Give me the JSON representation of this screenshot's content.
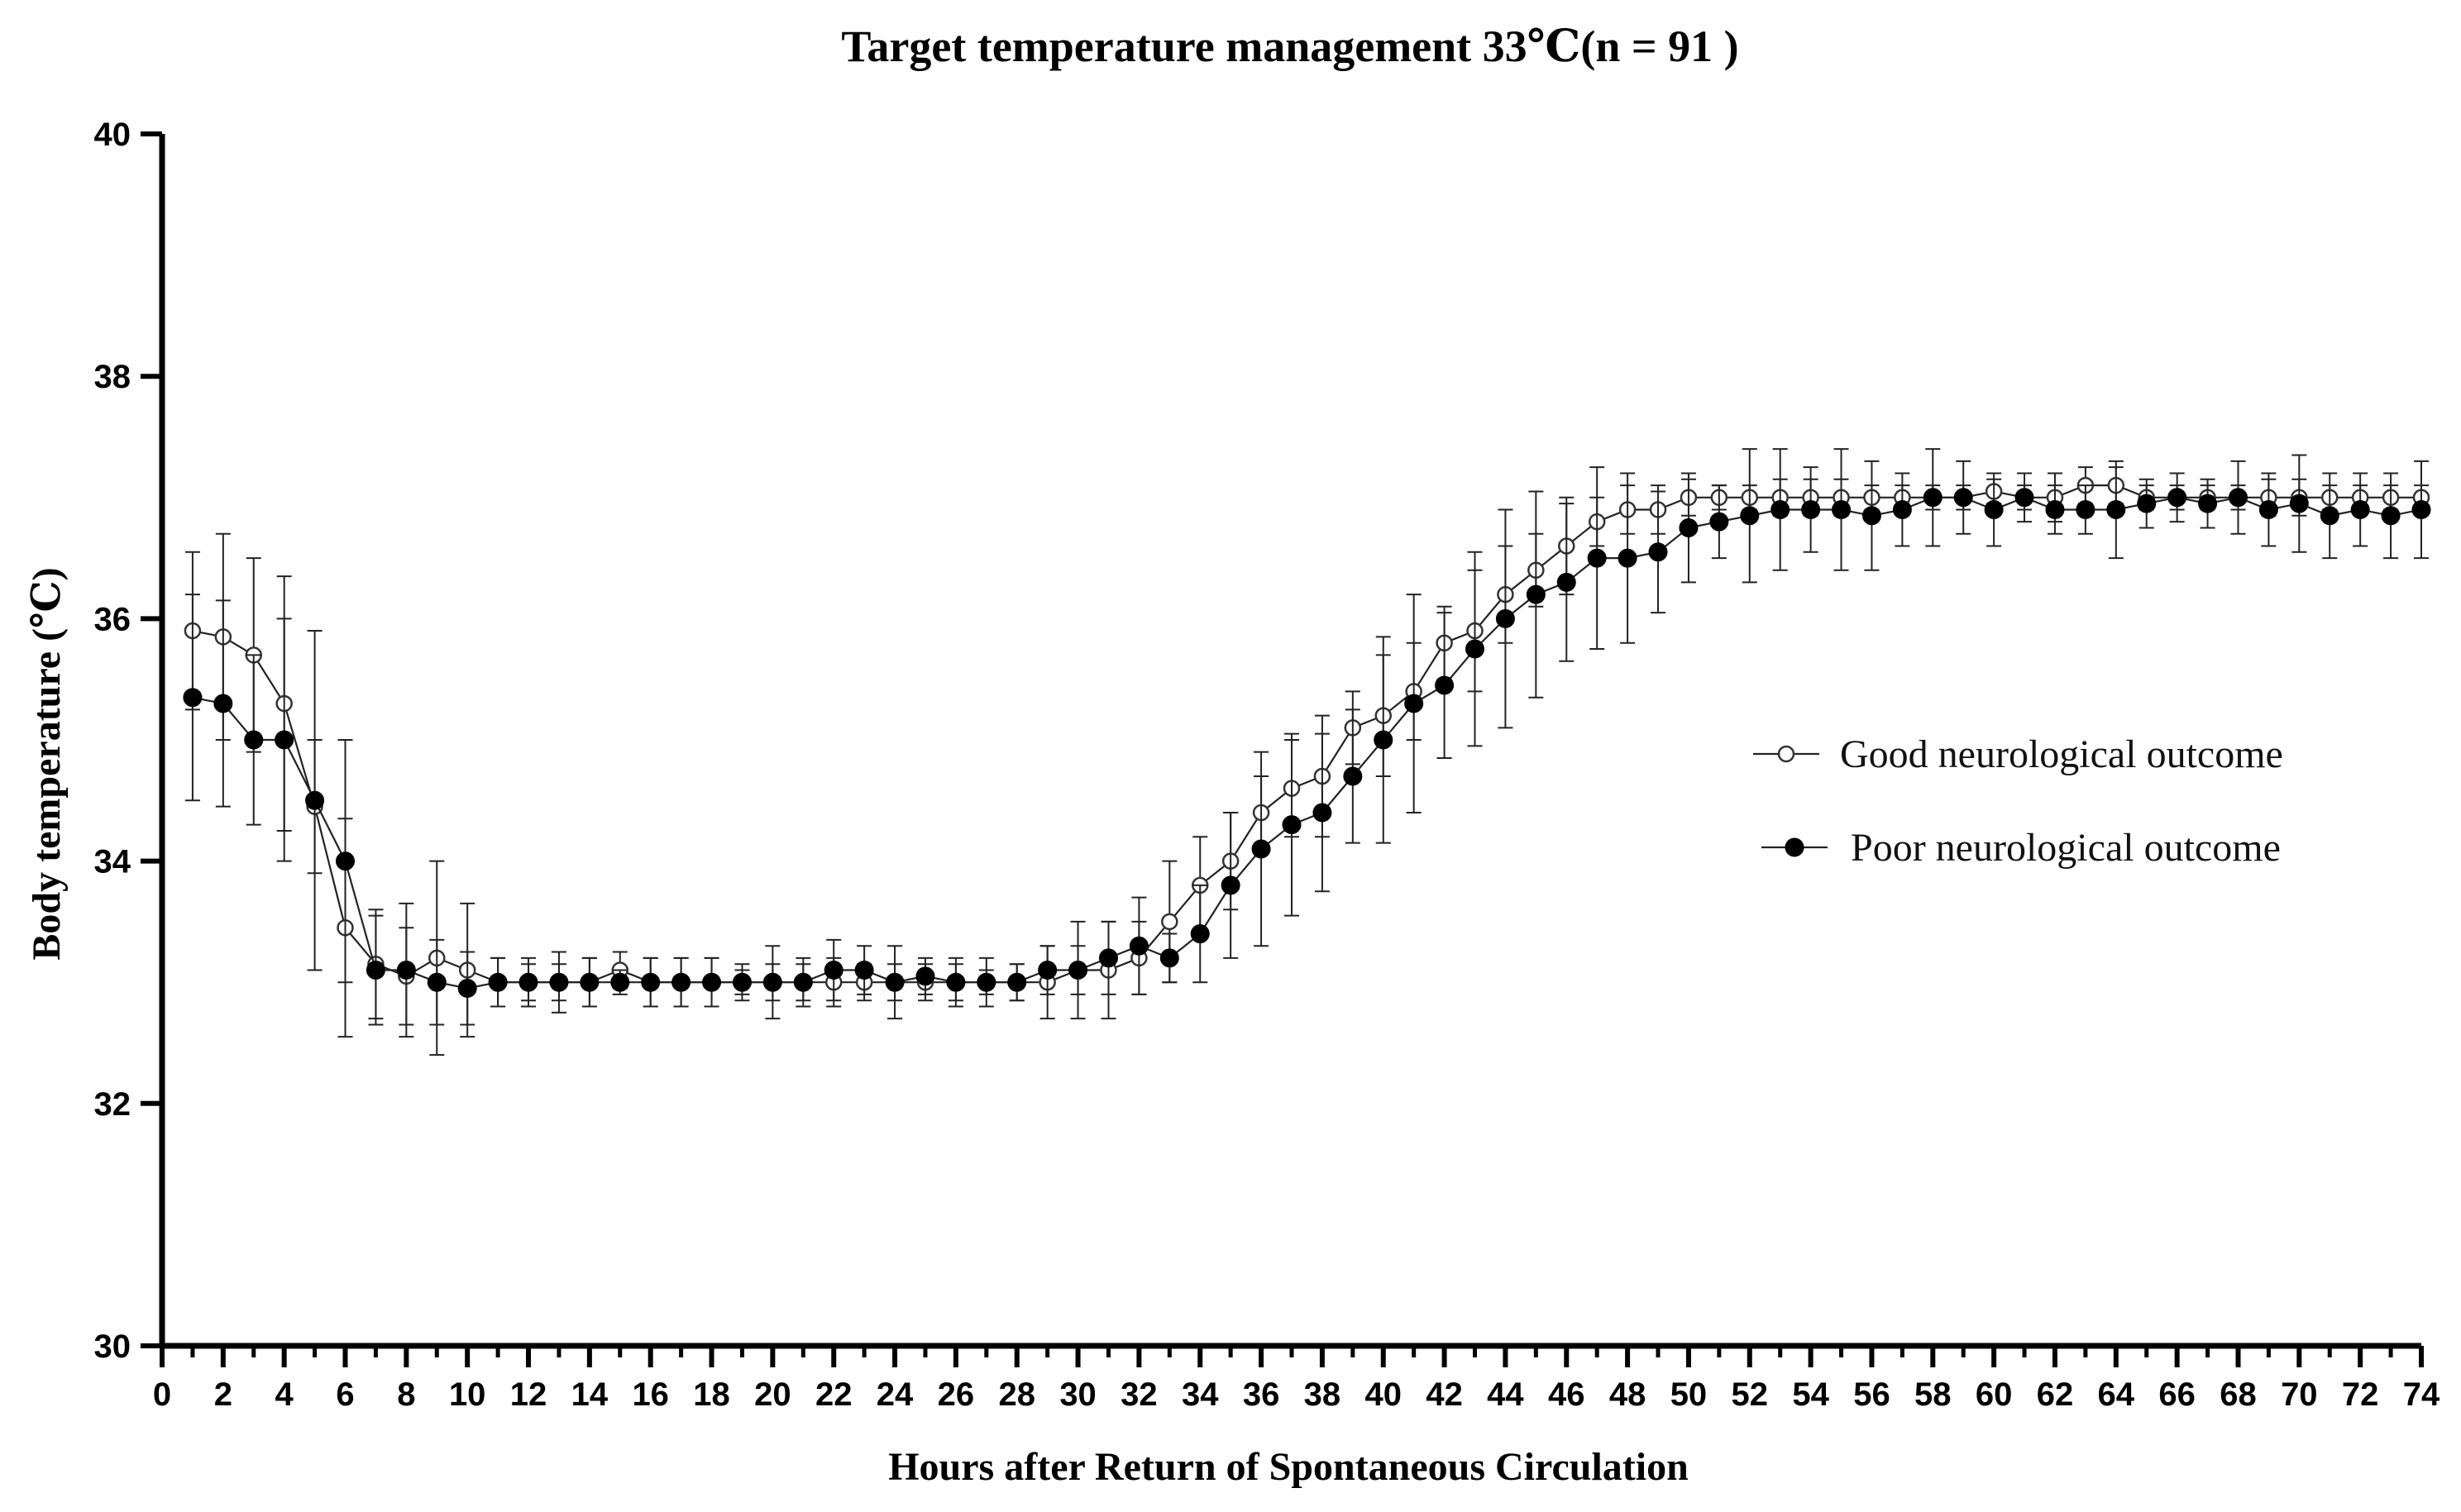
{
  "chart_data": {
    "type": "line",
    "title": "Target temperature management 33℃(n = 91 )",
    "xlabel": "Hours after Return of Spontaneous Circulation",
    "ylabel": "Body temperature (℃)",
    "xlim": [
      0,
      74
    ],
    "ylim": [
      30,
      40
    ],
    "x_ticks": [
      0,
      2,
      4,
      6,
      8,
      10,
      12,
      14,
      16,
      18,
      20,
      22,
      24,
      26,
      28,
      30,
      32,
      34,
      36,
      38,
      40,
      42,
      44,
      46,
      48,
      50,
      52,
      54,
      56,
      58,
      60,
      62,
      64,
      66,
      68,
      70,
      72,
      74
    ],
    "y_ticks": [
      30,
      32,
      34,
      36,
      38,
      40
    ],
    "grid": false,
    "legend_position": "right",
    "x": [
      1,
      2,
      3,
      4,
      5,
      6,
      7,
      8,
      9,
      10,
      11,
      12,
      13,
      14,
      15,
      16,
      17,
      18,
      19,
      20,
      21,
      22,
      23,
      24,
      25,
      26,
      27,
      28,
      29,
      30,
      31,
      32,
      33,
      34,
      35,
      36,
      37,
      38,
      39,
      40,
      41,
      42,
      43,
      44,
      45,
      46,
      47,
      48,
      49,
      50,
      51,
      52,
      53,
      54,
      55,
      56,
      57,
      58,
      59,
      60,
      61,
      62,
      63,
      64,
      65,
      66,
      67,
      68,
      69,
      70,
      71,
      72,
      73,
      74
    ],
    "series": [
      {
        "name": "Good neurological outcome",
        "marker": "open-circle",
        "color": "#333333",
        "values": [
          35.9,
          35.85,
          35.7,
          35.3,
          34.45,
          33.45,
          33.15,
          33.05,
          33.2,
          33.1,
          33.0,
          33.0,
          33.0,
          33.0,
          33.1,
          33.0,
          33.0,
          33.0,
          33.0,
          33.0,
          33.0,
          33.0,
          33.0,
          33.0,
          33.0,
          33.0,
          33.0,
          33.0,
          33.0,
          33.1,
          33.1,
          33.2,
          33.5,
          33.8,
          34.0,
          34.4,
          34.6,
          34.7,
          35.1,
          35.2,
          35.4,
          35.8,
          35.9,
          36.2,
          36.4,
          36.6,
          36.8,
          36.9,
          36.9,
          37.0,
          37.0,
          37.0,
          37.0,
          37.0,
          37.0,
          37.0,
          37.0,
          37.0,
          37.0,
          37.05,
          37.0,
          37.0,
          37.1,
          37.1,
          37.0,
          37.0,
          37.0,
          37.0,
          37.0,
          37.0,
          37.0,
          37.0,
          37.0,
          37.0
        ],
        "error": [
          0.65,
          0.85,
          0.8,
          1.05,
          0.55,
          0.9,
          0.45,
          0.4,
          0.8,
          0.55,
          0.2,
          0.15,
          0.15,
          0.2,
          0.15,
          0.2,
          0.2,
          0.2,
          0.1,
          0.3,
          0.15,
          0.2,
          0.15,
          0.3,
          0.15,
          0.15,
          0.2,
          0.15,
          0.3,
          0.4,
          0.4,
          0.3,
          0.5,
          0.4,
          0.4,
          0.3,
          0.4,
          0.5,
          0.3,
          0.5,
          0.4,
          0.3,
          0.5,
          0.4,
          0.3,
          0.4,
          0.2,
          0.2,
          0.2,
          0.15,
          0.1,
          0.1,
          0.15,
          0.15,
          0.15,
          0.1,
          0.1,
          0.1,
          0.1,
          0.1,
          0.1,
          0.2,
          0.15,
          0.15,
          0.1,
          0.1,
          0.1,
          0.1,
          0.15,
          0.15,
          0.1,
          0.1,
          0.1,
          0.1
        ]
      },
      {
        "name": "Poor neurological outcome",
        "marker": "filled-circle",
        "color": "#000000",
        "values": [
          35.35,
          35.3,
          35.0,
          35.0,
          34.5,
          34.0,
          33.1,
          33.1,
          33.0,
          32.95,
          33.0,
          33.0,
          33.0,
          33.0,
          33.0,
          33.0,
          33.0,
          33.0,
          33.0,
          33.0,
          33.0,
          33.1,
          33.1,
          33.0,
          33.05,
          33.0,
          33.0,
          33.0,
          33.1,
          33.1,
          33.2,
          33.3,
          33.2,
          33.4,
          33.8,
          34.1,
          34.3,
          34.4,
          34.7,
          35.0,
          35.3,
          35.45,
          35.75,
          36.0,
          36.2,
          36.3,
          36.5,
          36.5,
          36.55,
          36.75,
          36.8,
          36.85,
          36.9,
          36.9,
          36.9,
          36.85,
          36.9,
          37.0,
          37.0,
          36.9,
          37.0,
          36.9,
          36.9,
          36.9,
          36.95,
          37.0,
          36.95,
          37.0,
          36.9,
          36.95,
          36.85,
          36.9,
          36.85,
          36.9
        ],
        "error": [
          0.85,
          0.85,
          0.7,
          1.0,
          1.4,
          1.0,
          0.45,
          0.55,
          0.35,
          0.3,
          0.2,
          0.2,
          0.25,
          0.2,
          0.1,
          0.2,
          0.2,
          0.2,
          0.15,
          0.15,
          0.2,
          0.25,
          0.2,
          0.15,
          0.15,
          0.2,
          0.1,
          0.15,
          0.2,
          0.2,
          0.3,
          0.4,
          0.2,
          0.4,
          0.6,
          0.8,
          0.75,
          0.65,
          0.55,
          0.85,
          0.9,
          0.6,
          0.8,
          0.9,
          0.85,
          0.65,
          0.75,
          0.7,
          0.5,
          0.45,
          0.3,
          0.55,
          0.5,
          0.35,
          0.5,
          0.45,
          0.3,
          0.4,
          0.3,
          0.3,
          0.2,
          0.2,
          0.2,
          0.4,
          0.2,
          0.2,
          0.2,
          0.3,
          0.3,
          0.4,
          0.35,
          0.3,
          0.35,
          0.4
        ]
      }
    ]
  }
}
